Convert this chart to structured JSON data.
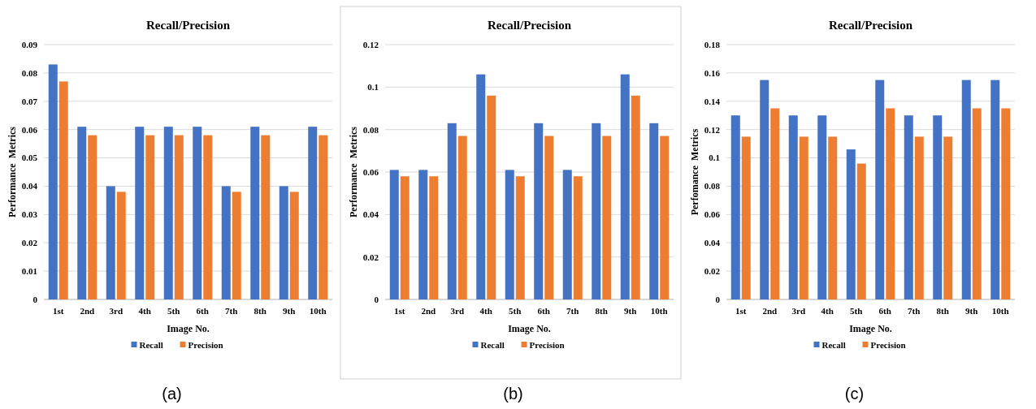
{
  "chart_data": [
    {
      "type": "bar",
      "title": "Recall/Precision",
      "xlabel": "Image No.",
      "ylabel": "Performance  Metrics",
      "categories": [
        "1st",
        "2nd",
        "3rd",
        "4th",
        "5th",
        "6th",
        "7th",
        "8th",
        "9th",
        "10th"
      ],
      "series": [
        {
          "name": "Recall",
          "color": "#4472c4",
          "values": [
            0.083,
            0.061,
            0.04,
            0.061,
            0.061,
            0.061,
            0.04,
            0.061,
            0.04,
            0.061
          ]
        },
        {
          "name": "Precision",
          "color": "#ed7d31",
          "values": [
            0.077,
            0.058,
            0.038,
            0.058,
            0.058,
            0.058,
            0.038,
            0.058,
            0.038,
            0.058
          ]
        }
      ],
      "ylim": [
        0,
        0.09
      ],
      "yticks": [
        0,
        0.01,
        0.02,
        0.03,
        0.04,
        0.05,
        0.06,
        0.07,
        0.08,
        0.09
      ],
      "grid": "y",
      "legend": "bottom",
      "annotations": [
        "(a)"
      ]
    },
    {
      "type": "bar",
      "title": "Recall/Precision",
      "xlabel": "Image No.",
      "ylabel": "Performance  Metrics",
      "categories": [
        "1st",
        "2nd",
        "3rd",
        "4th",
        "5th",
        "6th",
        "7th",
        "8th",
        "9th",
        "10th"
      ],
      "series": [
        {
          "name": "Recall",
          "color": "#4472c4",
          "values": [
            0.061,
            0.061,
            0.083,
            0.106,
            0.061,
            0.083,
            0.061,
            0.083,
            0.106,
            0.083
          ]
        },
        {
          "name": "Precision",
          "color": "#ed7d31",
          "values": [
            0.058,
            0.058,
            0.077,
            0.096,
            0.058,
            0.077,
            0.058,
            0.077,
            0.096,
            0.077
          ]
        }
      ],
      "ylim": [
        0,
        0.12
      ],
      "yticks": [
        0,
        0.02,
        0.04,
        0.06,
        0.08,
        0.1,
        0.12
      ],
      "grid": "y",
      "legend": "bottom",
      "annotations": [
        "(b)"
      ]
    },
    {
      "type": "bar",
      "title": "Recall/Precision",
      "xlabel": "Image No.",
      "ylabel": "Perfomance  Metrics",
      "categories": [
        "1st",
        "2nd",
        "3rd",
        "4th",
        "5th",
        "6th",
        "7th",
        "8th",
        "9th",
        "10th"
      ],
      "series": [
        {
          "name": "Recall",
          "color": "#4472c4",
          "values": [
            0.13,
            0.155,
            0.13,
            0.13,
            0.106,
            0.155,
            0.13,
            0.13,
            0.155,
            0.155
          ]
        },
        {
          "name": "Precision",
          "color": "#ed7d31",
          "values": [
            0.115,
            0.135,
            0.115,
            0.115,
            0.096,
            0.135,
            0.115,
            0.115,
            0.135,
            0.135
          ]
        }
      ],
      "ylim": [
        0,
        0.18
      ],
      "yticks": [
        0,
        0.02,
        0.04,
        0.06,
        0.08,
        0.1,
        0.12,
        0.14,
        0.16,
        0.18
      ],
      "grid": "y",
      "legend": "bottom",
      "annotations": [
        "(c)"
      ]
    }
  ]
}
